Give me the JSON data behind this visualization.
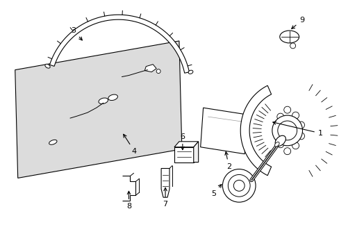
{
  "background_color": "#ffffff",
  "figsize": [
    4.89,
    3.6
  ],
  "dpi": 100,
  "light_gray": "#dcdcdc",
  "line_color": "#000000",
  "lw": 0.8
}
